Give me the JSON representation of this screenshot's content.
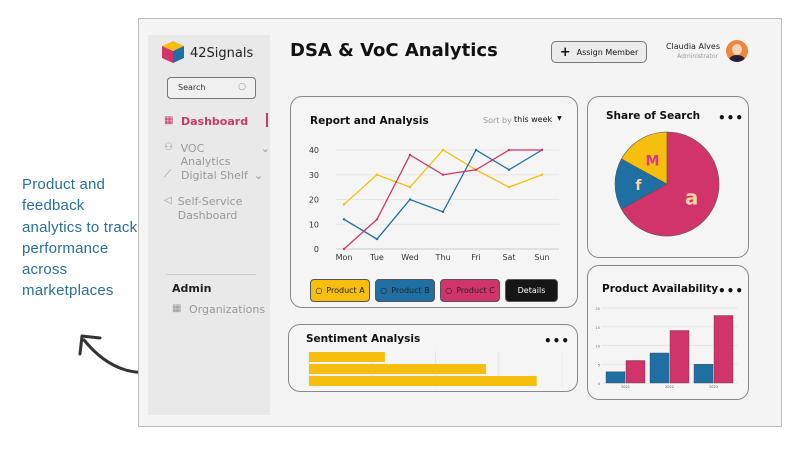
{
  "caption": "Product and feedback analytics to track performance across marketplaces",
  "colors": {
    "yellow": "#f6bf0f",
    "blue": "#1f6fa3",
    "pink": "#d1346b",
    "accent": "#c83a6a",
    "caption": "#2a6f9a"
  },
  "sidebar": {
    "brand": "42Signals",
    "search_placeholder": "Search",
    "items": [
      {
        "label": "Dashboard",
        "icon": "grid-icon",
        "active": true
      },
      {
        "label": "VOC Analytics",
        "icon": "users-icon",
        "chevron": true
      },
      {
        "label": "Digital Shelf",
        "icon": "chart-icon",
        "chevron": true
      },
      {
        "label": "Self-Service Dashboard",
        "icon": "megaphone-icon"
      }
    ],
    "admin_heading": "Admin",
    "admin_items": [
      {
        "label": "Organizations",
        "icon": "grid-icon"
      }
    ]
  },
  "header": {
    "title": "DSA & VoC Analytics",
    "assign_button": "Assign Member",
    "user_name": "Claudia Alves",
    "user_role": "Administrator"
  },
  "report": {
    "title": "Report and Analysis",
    "sort_label": "Sort by",
    "sort_value": "this week",
    "details_button": "Details"
  },
  "share": {
    "title": "Share of Search"
  },
  "availability": {
    "title": "Product Availability"
  },
  "sentiment": {
    "title": "Sentiment Analysis"
  },
  "chart_data": [
    {
      "type": "line",
      "title": "Report and Analysis",
      "categories": [
        "Mon",
        "Tue",
        "Wed",
        "Thu",
        "Fri",
        "Sat",
        "Sun"
      ],
      "ylim": [
        0,
        40
      ],
      "yticks": [
        0,
        10,
        20,
        30,
        40
      ],
      "grid": true,
      "legend": "bottom",
      "series": [
        {
          "name": "Product A",
          "color": "#f6bf0f",
          "values": [
            18,
            30,
            25,
            40,
            32,
            25,
            30
          ]
        },
        {
          "name": "Product B",
          "color": "#1f6fa3",
          "values": [
            12,
            4,
            20,
            15,
            40,
            32,
            40
          ]
        },
        {
          "name": "Product C",
          "color": "#d1346b",
          "values": [
            0,
            12,
            38,
            30,
            32,
            40,
            40
          ]
        }
      ]
    },
    {
      "type": "pie",
      "title": "Share of Search",
      "slices": [
        {
          "label": "Amazon",
          "value": 67,
          "color": "#d1346b"
        },
        {
          "label": "Flipkart",
          "value": 16,
          "color": "#1f6fa3"
        },
        {
          "label": "Myntra",
          "value": 17,
          "color": "#f6bf0f"
        }
      ]
    },
    {
      "type": "bar",
      "title": "Product Availability",
      "categories": [
        "2021",
        "2022",
        "2023"
      ],
      "ylim": [
        0,
        20
      ],
      "yticks": [
        0,
        5,
        10,
        15,
        20
      ],
      "series": [
        {
          "color": "#1f6fa3",
          "values": [
            3,
            8,
            5
          ]
        },
        {
          "color": "#d1346b",
          "values": [
            6,
            14,
            18
          ]
        }
      ]
    },
    {
      "type": "bar",
      "orientation": "horizontal",
      "title": "Sentiment Analysis",
      "xlim": [
        0,
        4
      ],
      "values": [
        1.2,
        2.8,
        3.6
      ],
      "color": "#f6bf0f"
    }
  ]
}
